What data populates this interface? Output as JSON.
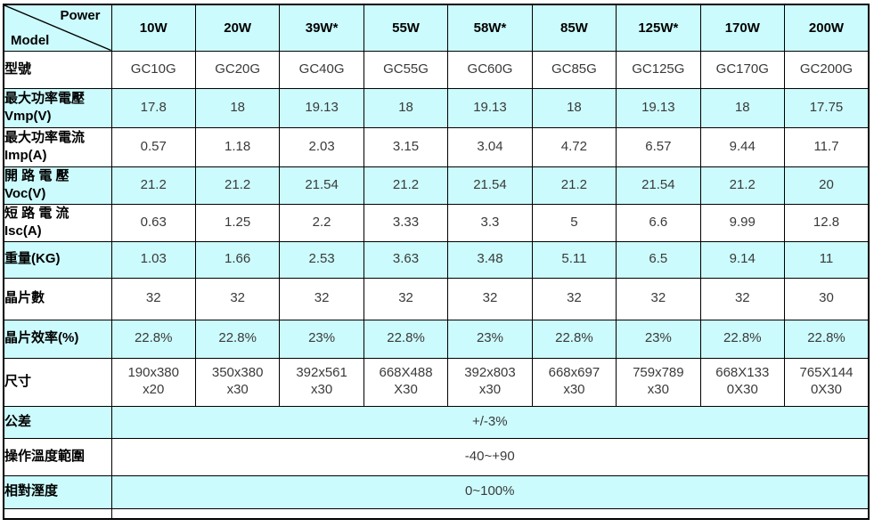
{
  "table": {
    "corner": {
      "top_right_label": "Power",
      "bottom_left_label": "Model"
    },
    "power_columns": [
      "10W",
      "20W",
      "39W*",
      "55W",
      "58W*",
      "85W",
      "125W*",
      "170W",
      "200W"
    ],
    "rows": [
      {
        "label": "型號",
        "values": [
          "GC10G",
          "GC20G",
          "GC40G",
          "GC55G",
          "GC60G",
          "GC85G",
          "GC125G",
          "GC170G",
          "GC200G"
        ]
      },
      {
        "label": "最大功率電壓\nVmp(V)",
        "values": [
          "17.8",
          "18",
          "19.13",
          "18",
          "19.13",
          "18",
          "19.13",
          "18",
          "17.75"
        ]
      },
      {
        "label": "最大功率電流\nImp(A)",
        "values": [
          "0.57",
          "1.18",
          "2.03",
          "3.15",
          "3.04",
          "4.72",
          "6.57",
          "9.44",
          "11.7"
        ]
      },
      {
        "label": "開 路 電 壓\nVoc(V)",
        "values": [
          "21.2",
          "21.2",
          "21.54",
          "21.2",
          "21.54",
          "21.2",
          "21.54",
          "21.2",
          "20"
        ]
      },
      {
        "label": "短 路 電 流\nIsc(A)",
        "values": [
          "0.63",
          "1.25",
          "2.2",
          "3.33",
          "3.3",
          "5",
          "6.6",
          "9.99",
          "12.8"
        ]
      },
      {
        "label": "重量(KG)",
        "values": [
          "1.03",
          "1.66",
          "2.53",
          "3.63",
          "3.48",
          "5.11",
          "6.5",
          "9.14",
          "11"
        ]
      },
      {
        "label": "晶片數",
        "values": [
          "32",
          "32",
          "32",
          "32",
          "32",
          "32",
          "32",
          "32",
          "30"
        ]
      },
      {
        "label": "晶片效率(%)",
        "values": [
          "22.8%",
          "22.8%",
          "23%",
          "22.8%",
          "23%",
          "22.8%",
          "23%",
          "22.8%",
          "22.8%"
        ]
      },
      {
        "label": "尺寸",
        "values": [
          "190x380\nx20",
          "350x380\nx30",
          "392x561\nx30",
          "668X488\nX30",
          "392x803\nx30",
          "668x697\nx30",
          "759x789\nx30",
          "668X133\n0X30",
          "765X144\n0X30"
        ]
      },
      {
        "label": "公差",
        "merged_value": "+/-3%"
      },
      {
        "label": "操作溫度範圍",
        "merged_value": "-40~+90"
      },
      {
        "label": "相對溼度",
        "merged_value": "0~100%"
      }
    ],
    "colors": {
      "band_fill": "#CCFBFD",
      "plain_fill": "#FFFFFF",
      "border": "#000000",
      "header_text": "#000000",
      "value_text": "#3A3A3A"
    }
  }
}
